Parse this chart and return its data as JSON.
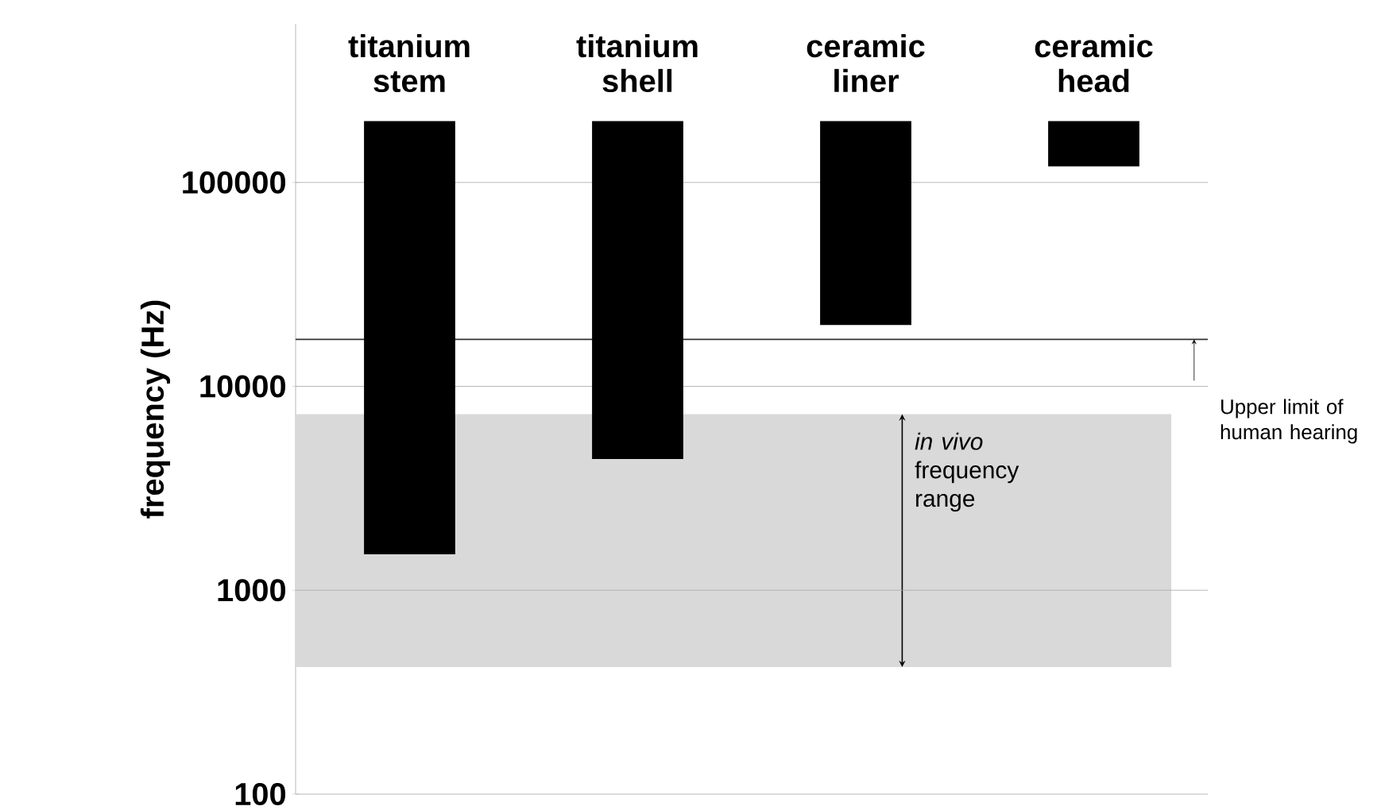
{
  "chart_data": {
    "type": "bar",
    "categories": [
      "titanium stem",
      "titanium shell",
      "ceramic liner",
      "ceramic head"
    ],
    "base": [
      1500,
      4400,
      20000,
      120000
    ],
    "values": [
      198500,
      195600,
      180000,
      80000
    ],
    "color": "#000000",
    "ylabel": "frequency (Hz)",
    "log": "y",
    "ylim": [
      100,
      600000
    ],
    "yticks": [
      100,
      1000,
      10000,
      100000
    ],
    "grid": "y",
    "ref_lines": [
      {
        "axis": "y",
        "value": 17000,
        "label": "Upper limit of human hearing",
        "color": "#333333"
      }
    ],
    "bands": [
      {
        "axis": "y",
        "from": 420,
        "to": 7300,
        "label": "*in vivo* frequency range",
        "color": "#d9d9d9"
      }
    ]
  }
}
